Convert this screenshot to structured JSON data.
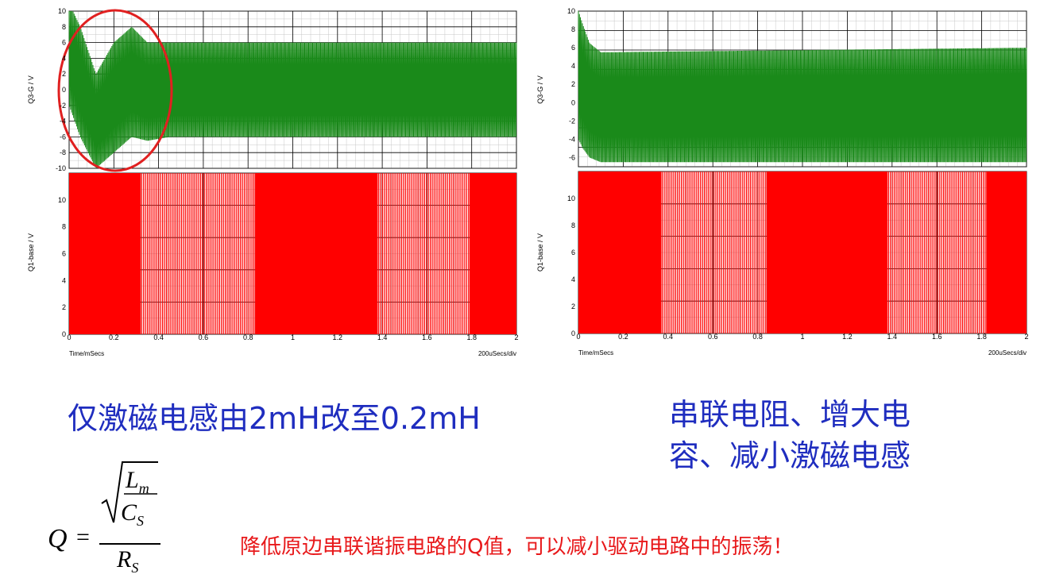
{
  "captions": {
    "left": "仅激磁电感由2mH改至0.2mH",
    "right_line1": "串联电阻、增大电",
    "right_line2": "容、减小激磁电感",
    "note": "降低原边串联谐振电路的Q值，可以减小驱动电路中的振荡！"
  },
  "formula": {
    "lhs": "Q",
    "eq": "=",
    "num_top": "L",
    "num_top_sub": "m",
    "num_bottom": "C",
    "num_bottom_sub": "S",
    "den": "R",
    "den_sub": "S"
  },
  "colors": {
    "top_trace": "#1a8a1a",
    "bottom_trace": "#ff0000",
    "caption": "#1f2dbf",
    "note": "#e8191b",
    "circle": "#e02020"
  },
  "chart_data": [
    {
      "type": "line",
      "panel": "left-top",
      "ylabel": "Q3-G / V",
      "ylim": [
        -10,
        10
      ],
      "yticks": [
        "10",
        "8",
        "6",
        "4",
        "2",
        "0",
        "-2",
        "-4",
        "-6",
        "-8",
        "-10"
      ],
      "xlim": [
        0,
        2
      ],
      "series": [
        {
          "kind": "oscillation",
          "envelope_time_ms": [
            0,
            0.05,
            0.12,
            0.2,
            0.28,
            0.35,
            0.45,
            0.6,
            2
          ],
          "envelope_upper": [
            11,
            8,
            2,
            6,
            8,
            6,
            6,
            6,
            6
          ],
          "envelope_lower": [
            -2,
            -6,
            -10,
            -8,
            -6,
            -6.5,
            -6,
            -6,
            -6
          ]
        }
      ],
      "grid": true,
      "annotation": "circle-highlight-startup"
    },
    {
      "type": "line",
      "panel": "left-bottom",
      "ylabel": "Q1-base / V",
      "ylim": [
        0,
        12
      ],
      "yticks": [
        "10",
        "8",
        "6",
        "4",
        "2",
        "0"
      ],
      "xlim": [
        0,
        2
      ],
      "xticks": [
        "0",
        "0.2",
        "0.4",
        "0.6",
        "0.8",
        "1",
        "1.2",
        "1.4",
        "1.6",
        "1.8",
        "2"
      ],
      "xlabel": "Time/mSecs",
      "xdiv": "200uSecs/div",
      "series": [
        {
          "kind": "pulse-train",
          "high": 12,
          "low": 0,
          "dense_segments_ms": [
            [
              0,
              0.32
            ],
            [
              0.83,
              1.38
            ],
            [
              1.79,
              2
            ]
          ],
          "sparse_segments_ms": [
            [
              0.32,
              0.83
            ],
            [
              1.38,
              1.79
            ]
          ]
        }
      ],
      "grid": true
    },
    {
      "type": "line",
      "panel": "right-top",
      "ylabel": "Q3-G / V",
      "ylim": [
        -7,
        10
      ],
      "yticks": [
        "10",
        "8",
        "6",
        "4",
        "2",
        "0",
        "-2",
        "-4",
        "-6"
      ],
      "xlim": [
        0,
        2
      ],
      "series": [
        {
          "kind": "oscillation",
          "envelope_time_ms": [
            0,
            0.02,
            0.05,
            0.1,
            2
          ],
          "envelope_upper": [
            10,
            8.5,
            6.5,
            5.5,
            6
          ],
          "envelope_lower": [
            -4,
            -5,
            -6,
            -6.5,
            -6.5
          ]
        }
      ],
      "grid": true
    },
    {
      "type": "line",
      "panel": "right-bottom",
      "ylabel": "Q1-base / V",
      "ylim": [
        0,
        12
      ],
      "yticks": [
        "10",
        "8",
        "6",
        "4",
        "2",
        "0"
      ],
      "xlim": [
        0,
        2
      ],
      "xticks": [
        "0",
        "0.2",
        "0.4",
        "0.6",
        "0.8",
        "1",
        "1.2",
        "1.4",
        "1.6",
        "1.8",
        "2"
      ],
      "xlabel": "Time/mSecs",
      "xdiv": "200uSecs/div",
      "series": [
        {
          "kind": "pulse-train",
          "high": 12,
          "low": 0,
          "dense_segments_ms": [
            [
              0,
              0.37
            ],
            [
              0.84,
              1.38
            ],
            [
              1.82,
              2
            ]
          ],
          "sparse_segments_ms": [
            [
              0.37,
              0.84
            ],
            [
              1.38,
              1.82
            ]
          ]
        }
      ],
      "grid": true
    }
  ]
}
